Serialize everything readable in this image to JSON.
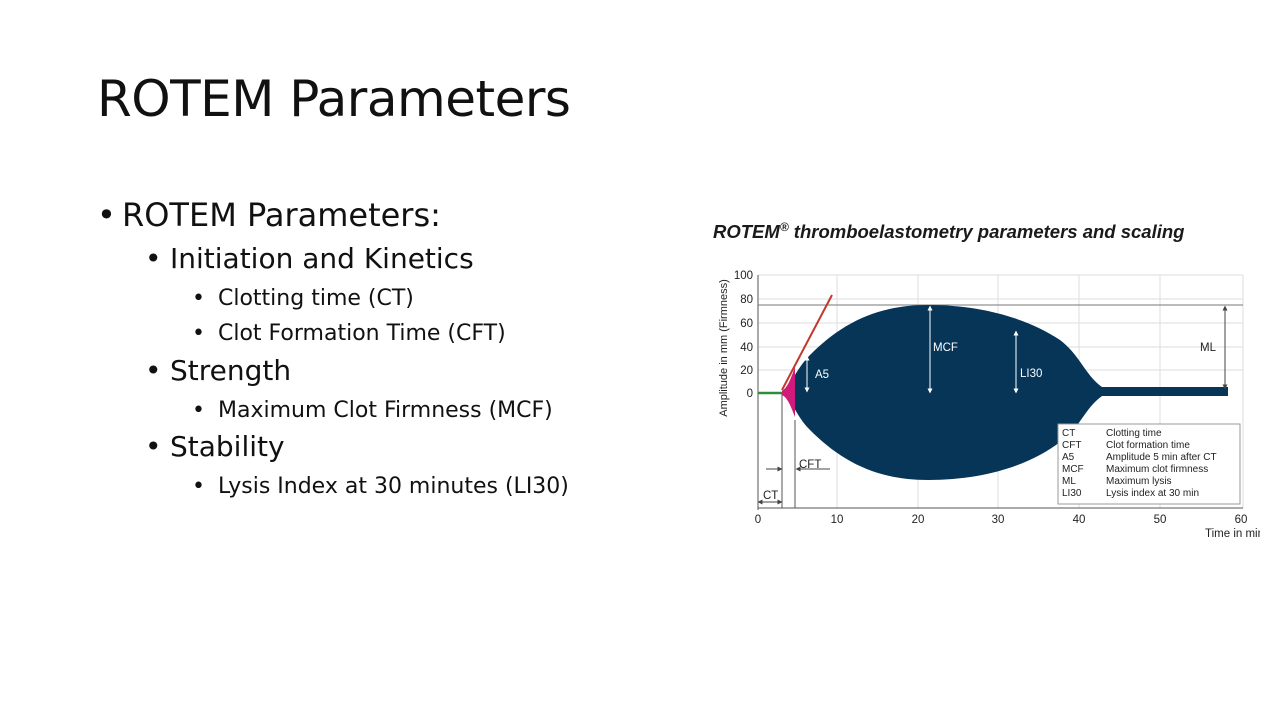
{
  "slide": {
    "title": "ROTEM Parameters",
    "bullets": [
      {
        "text": "ROTEM Parameters:"
      },
      {
        "text": "Initiation and Kinetics"
      },
      {
        "text": "Clotting time (CT)"
      },
      {
        "text": "Clot Formation Time (CFT)"
      },
      {
        "text": "Strength"
      },
      {
        "text": "Maximum Clot Firmness (MCF)"
      },
      {
        "text": "Stability"
      },
      {
        "text": "Lysis Index at 30 minutes (LI30)"
      }
    ],
    "bullet_glyph": "•"
  },
  "figure": {
    "title_main": "ROTEM",
    "title_reg": "®",
    "title_rest": " thromboelastometry parameters and scaling",
    "y_axis_label": "Amplitude in mm (Firmness)",
    "x_axis_label": "Time in min",
    "y_ticks": [
      "100",
      "80",
      "60",
      "40",
      "20",
      "0"
    ],
    "x_ticks": [
      "0",
      "10",
      "20",
      "30",
      "40",
      "50",
      "60"
    ],
    "labels": {
      "a5": "A5",
      "mcf": "MCF",
      "li30": "LI30",
      "ml": "ML",
      "cft": "CFT",
      "ct": "CT"
    },
    "legend": [
      {
        "abbr": "CT",
        "desc": "Clotting time"
      },
      {
        "abbr": "CFT",
        "desc": "Clot formation time"
      },
      {
        "abbr": "A5",
        "desc": "Amplitude 5 min after CT"
      },
      {
        "abbr": "MCF",
        "desc": "Maximum clot firmness"
      },
      {
        "abbr": "ML",
        "desc": "Maximum lysis"
      },
      {
        "abbr": "LI30",
        "desc": "Lysis index at 30 min"
      }
    ],
    "colors": {
      "trace": "#063558",
      "cft_fill": "#d11a7a",
      "slope": "#c0392b",
      "baseline": "#2e8b3a"
    }
  }
}
